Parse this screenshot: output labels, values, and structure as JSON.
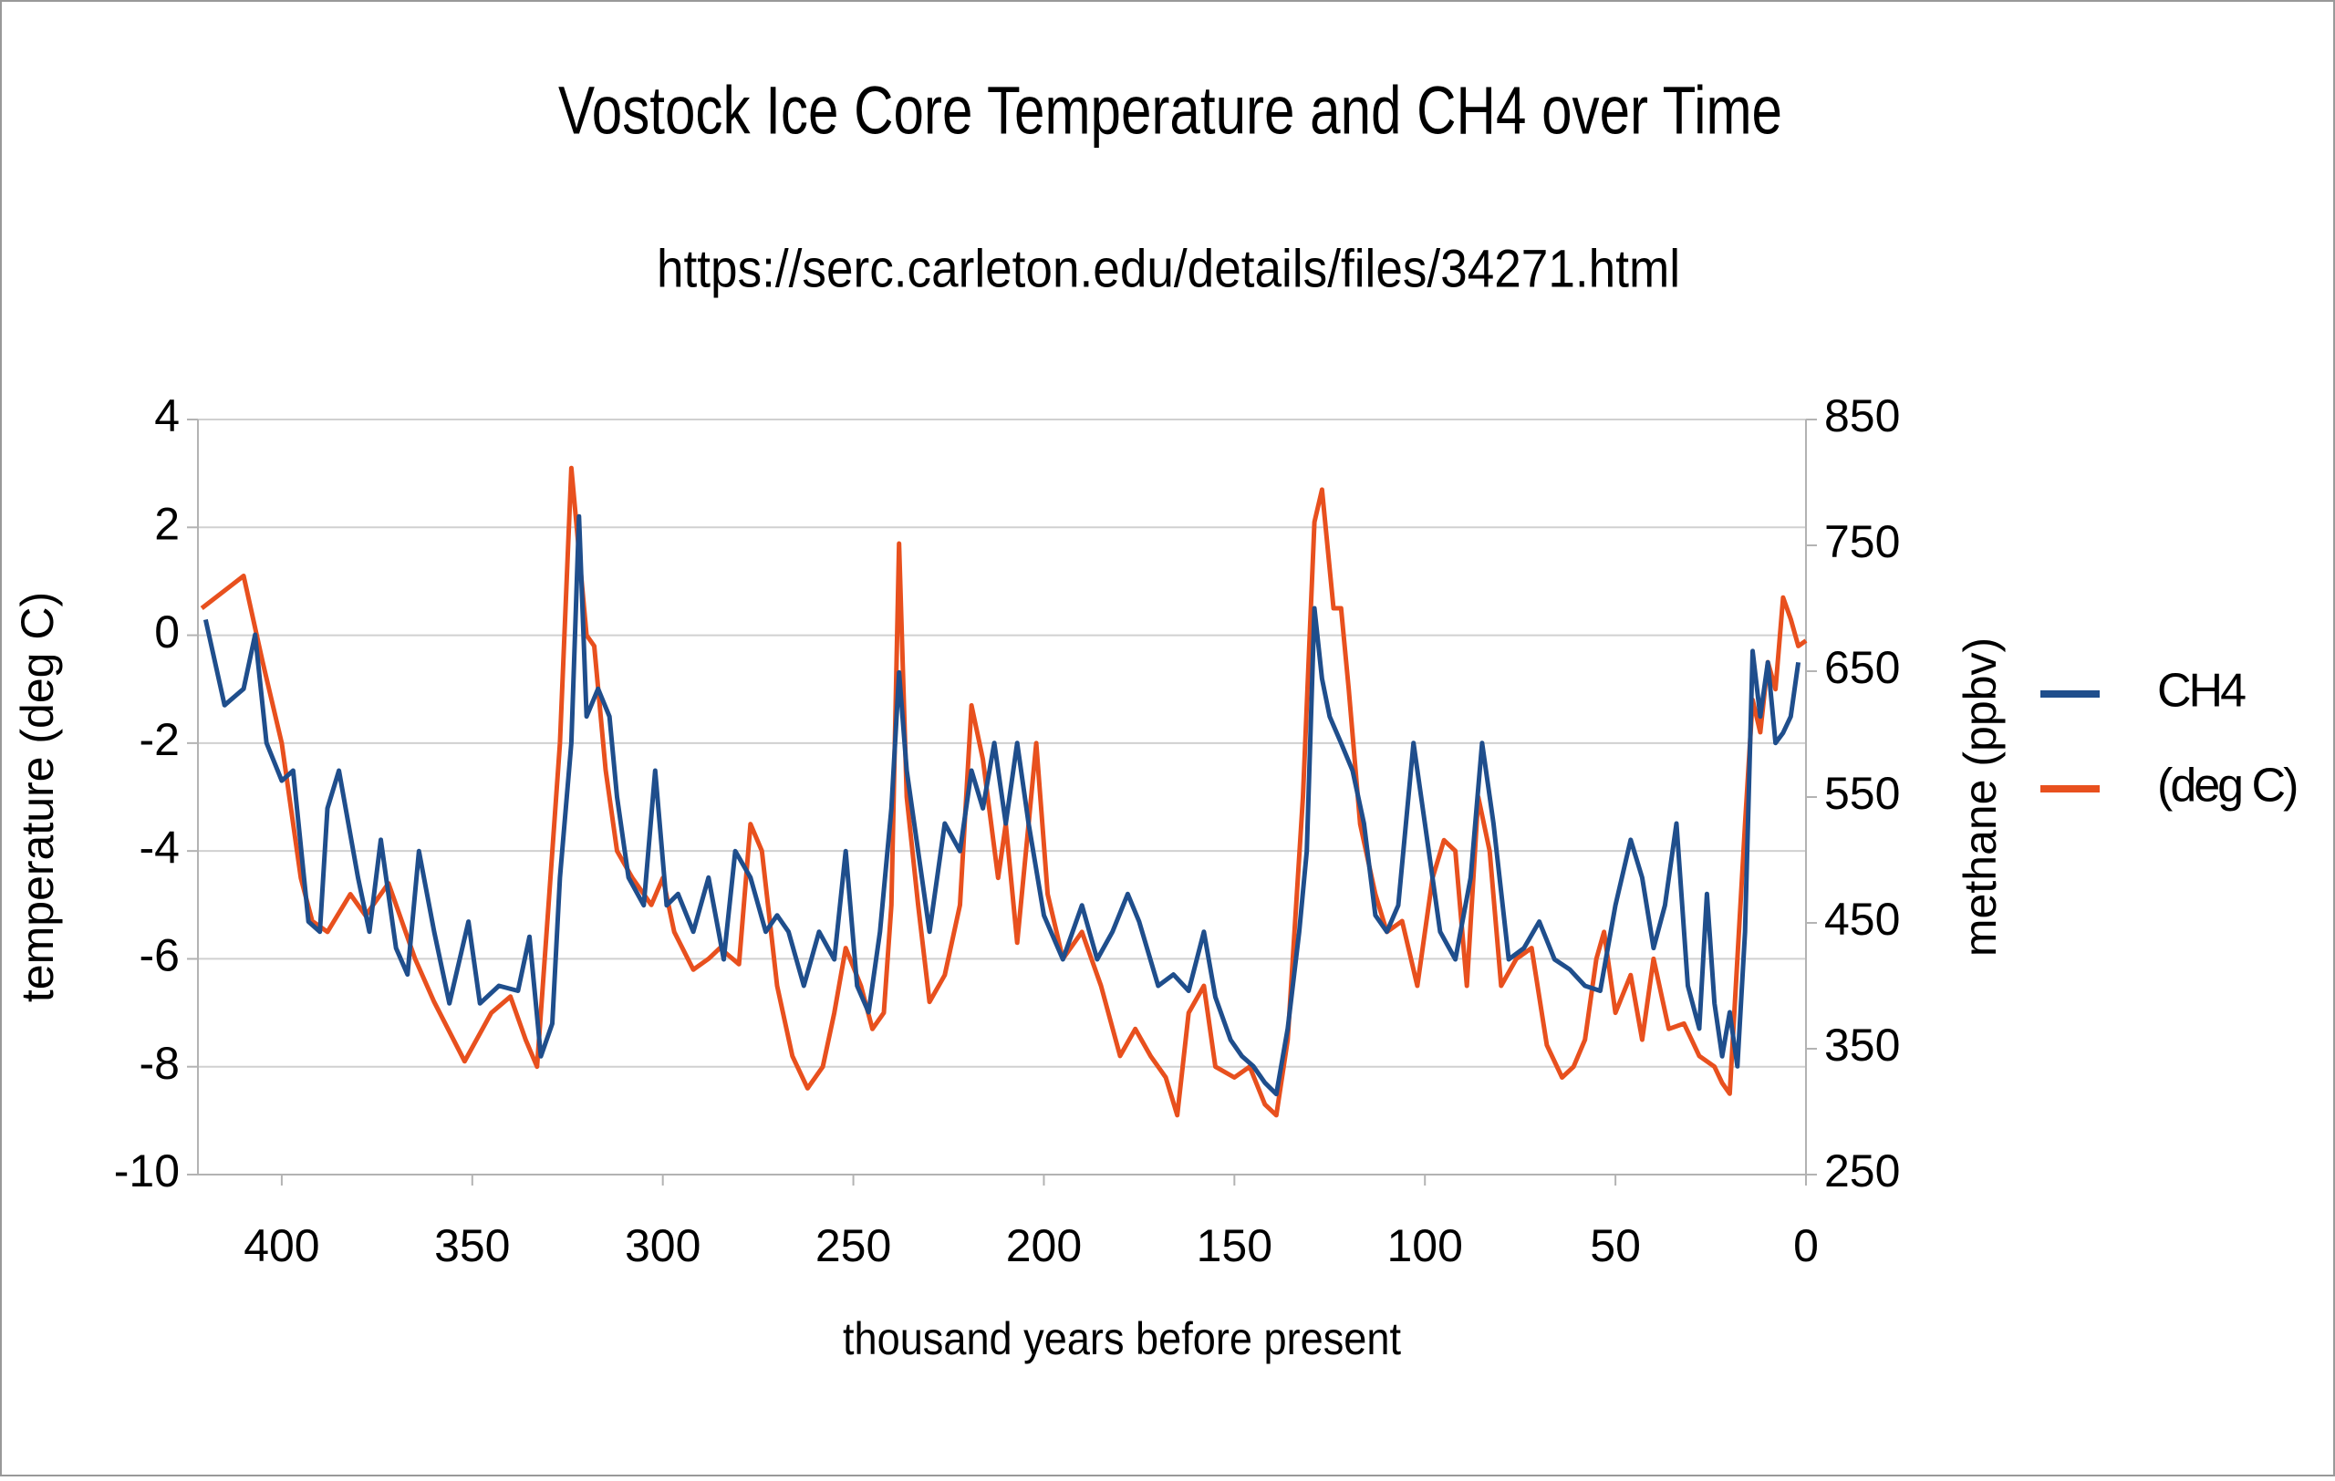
{
  "chart_data": {
    "type": "line",
    "title": "Vostock Ice Core Temperature and CH4 over Time",
    "subtitle": "https://serc.carleton.edu/details/files/34271.html",
    "xlabel": "thousand years before present",
    "ylabel": "temperature (deg C)",
    "y2label": "methane (ppbv)",
    "xlim": [
      422,
      0
    ],
    "xticks": [
      400,
      350,
      300,
      250,
      200,
      150,
      100,
      50,
      0
    ],
    "ylim": [
      -10,
      4
    ],
    "yticks": [
      -10,
      -8,
      -6,
      -4,
      -2,
      0,
      2,
      4
    ],
    "y2lim": [
      250,
      850
    ],
    "y2ticks": [
      250,
      350,
      450,
      550,
      650,
      750,
      850
    ],
    "grid": true,
    "legend": "right",
    "series": [
      {
        "name": "CH4",
        "color": "#1f4e8c",
        "axis": "y2",
        "x": [
          420,
          415,
          410,
          407,
          404,
          400,
          397,
          393,
          390,
          388,
          385,
          380,
          377,
          374,
          370,
          367,
          364,
          360,
          356,
          351,
          348,
          343,
          338,
          335,
          332,
          329,
          327,
          324,
          322,
          320,
          317,
          314,
          312,
          309,
          305,
          302,
          299,
          296,
          292,
          288,
          284,
          281,
          277,
          273,
          270,
          267,
          263,
          259,
          255,
          252,
          249,
          246,
          243,
          240,
          238,
          236,
          233,
          230,
          226,
          222,
          219,
          216,
          213,
          210,
          207,
          204,
          200,
          195,
          190,
          186,
          182,
          178,
          175,
          170,
          166,
          162,
          158,
          155,
          151,
          148,
          145,
          142,
          139,
          136,
          133,
          131,
          129,
          127,
          125,
          122,
          119,
          116,
          113,
          110,
          107,
          103,
          100,
          96,
          92,
          88,
          85,
          82,
          78,
          74,
          70,
          66,
          62,
          58,
          54,
          50,
          46,
          43,
          40,
          37,
          34,
          31,
          28,
          26,
          24,
          22,
          20,
          18,
          16,
          14,
          12,
          10,
          8,
          6,
          4,
          2
        ],
        "values": [
          691,
          623,
          636,
          679,
          593,
          563,
          571,
          451,
          443,
          541,
          571,
          486,
          443,
          516,
          430,
          409,
          507,
          443,
          386,
          451,
          386,
          400,
          396,
          439,
          344,
          370,
          486,
          593,
          773,
          614,
          636,
          614,
          550,
          486,
          464,
          571,
          464,
          473,
          443,
          486,
          421,
          507,
          486,
          443,
          456,
          443,
          400,
          443,
          421,
          507,
          400,
          379,
          443,
          541,
          649,
          571,
          507,
          443,
          529,
          507,
          571,
          541,
          593,
          529,
          593,
          529,
          456,
          421,
          464,
          421,
          443,
          473,
          451,
          400,
          409,
          396,
          443,
          391,
          357,
          344,
          336,
          323,
          314,
          366,
          443,
          507,
          700,
          644,
          614,
          593,
          571,
          529,
          456,
          443,
          464,
          593,
          529,
          443,
          421,
          486,
          593,
          529,
          421,
          430,
          451,
          421,
          413,
          400,
          396,
          464,
          516,
          486,
          430,
          464,
          529,
          400,
          366,
          473,
          386,
          344,
          379,
          336,
          443,
          666,
          614,
          657,
          593,
          601,
          614,
          657
        ]
      },
      {
        "name": "(deg C)",
        "color": "#e8501e",
        "axis": "y",
        "x": [
          421,
          410,
          405,
          400,
          395,
          392,
          388,
          382,
          378,
          372,
          365,
          360,
          352,
          345,
          340,
          336,
          333,
          330,
          327,
          324,
          320,
          318,
          315,
          312,
          308,
          303,
          300,
          297,
          292,
          288,
          285,
          280,
          277,
          274,
          270,
          266,
          262,
          258,
          255,
          252,
          248,
          245,
          242,
          240,
          238,
          236,
          233,
          230,
          226,
          222,
          219,
          216,
          212,
          210,
          207,
          204,
          202,
          199,
          195,
          190,
          185,
          180,
          176,
          172,
          168,
          165,
          162,
          158,
          155,
          150,
          146,
          142,
          139,
          136,
          132,
          129,
          127,
          124,
          122,
          120,
          117,
          113,
          110,
          106,
          102,
          98,
          95,
          92,
          89,
          86,
          83,
          80,
          76,
          72,
          68,
          64,
          61,
          58,
          55,
          53,
          50,
          46,
          43,
          40,
          36,
          32,
          28,
          24,
          22,
          20,
          18,
          16,
          14,
          12,
          10,
          8,
          6,
          4,
          2,
          0
        ],
        "values": [
          0.5,
          1.1,
          -0.5,
          -2,
          -4.5,
          -5.3,
          -5.5,
          -4.8,
          -5.2,
          -4.6,
          -6,
          -6.8,
          -7.9,
          -7,
          -6.7,
          -7.5,
          -8,
          -5,
          -2,
          3.1,
          0,
          -0.2,
          -2.5,
          -4,
          -4.5,
          -5,
          -4.5,
          -5.5,
          -6.2,
          -6,
          -5.8,
          -6.1,
          -3.5,
          -4,
          -6.5,
          -7.8,
          -8.4,
          -8,
          -7,
          -5.8,
          -6.5,
          -7.3,
          -7,
          -5,
          1.7,
          -3,
          -5,
          -6.8,
          -6.3,
          -5,
          -1.3,
          -2.3,
          -4.5,
          -3.5,
          -5.7,
          -3.5,
          -2,
          -4.8,
          -6,
          -5.5,
          -6.5,
          -7.8,
          -7.3,
          -7.8,
          -8.2,
          -8.9,
          -7,
          -6.5,
          -8,
          -8.2,
          -8,
          -8.7,
          -8.9,
          -7.5,
          -3,
          2.1,
          2.7,
          0.5,
          0.5,
          -1,
          -3.5,
          -4.8,
          -5.5,
          -5.3,
          -6.5,
          -4.5,
          -3.8,
          -4,
          -6.5,
          -3,
          -4,
          -6.5,
          -6,
          -5.8,
          -7.6,
          -8.2,
          -8,
          -7.5,
          -6,
          -5.5,
          -7,
          -6.3,
          -7.5,
          -6,
          -7.3,
          -7.2,
          -7.8,
          -8,
          -8.3,
          -8.5,
          -6,
          -3.5,
          -1.2,
          -1.8,
          -0.5,
          -1,
          0.7,
          0.3,
          -0.2,
          -0.1
        ]
      }
    ]
  }
}
